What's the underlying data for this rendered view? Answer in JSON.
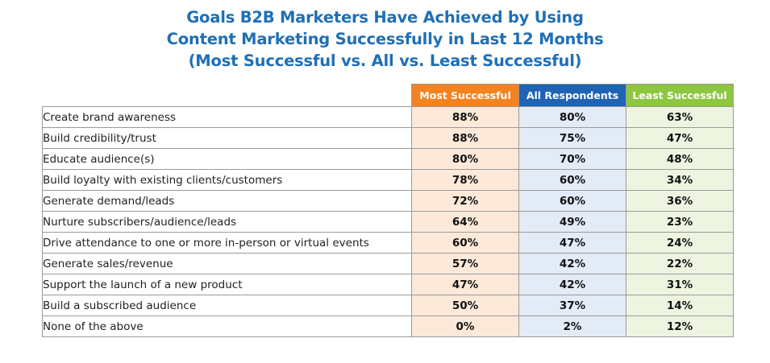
{
  "chart_data": {
    "type": "table",
    "title_lines": [
      "Goals B2B Marketers Have Achieved by Using",
      "Content Marketing Successfully in Last 12 Months",
      "(Most Successful vs. All vs. Least Successful)"
    ],
    "columns": [
      {
        "name": "Most Successful",
        "header_color": "#f4821f",
        "cell_color": "#fde9d9"
      },
      {
        "name": "All Respondents",
        "header_color": "#1f63b5",
        "cell_color": "#e3ebf7"
      },
      {
        "name": "Least Successful",
        "header_color": "#8dc63f",
        "cell_color": "#edf5e1"
      }
    ],
    "rows": [
      {
        "label": "Create brand awareness",
        "values": [
          "88%",
          "80%",
          "63%"
        ]
      },
      {
        "label": "Build credibility/trust",
        "values": [
          "88%",
          "75%",
          "47%"
        ]
      },
      {
        "label": "Educate audience(s)",
        "values": [
          "80%",
          "70%",
          "48%"
        ]
      },
      {
        "label": "Build loyalty with existing clients/customers",
        "values": [
          "78%",
          "60%",
          "34%"
        ]
      },
      {
        "label": "Generate demand/leads",
        "values": [
          "72%",
          "60%",
          "36%"
        ]
      },
      {
        "label": "Nurture subscribers/audience/leads",
        "values": [
          "64%",
          "49%",
          "23%"
        ]
      },
      {
        "label": "Drive attendance to one or more in-person or virtual events",
        "values": [
          "60%",
          "47%",
          "24%"
        ]
      },
      {
        "label": "Generate sales/revenue",
        "values": [
          "57%",
          "42%",
          "22%"
        ]
      },
      {
        "label": "Support the launch of a new product",
        "values": [
          "47%",
          "42%",
          "31%"
        ]
      },
      {
        "label": "Build a subscribed audience",
        "values": [
          "50%",
          "37%",
          "14%"
        ]
      },
      {
        "label": "None of the above",
        "values": [
          "0%",
          "2%",
          "12%"
        ]
      }
    ]
  }
}
